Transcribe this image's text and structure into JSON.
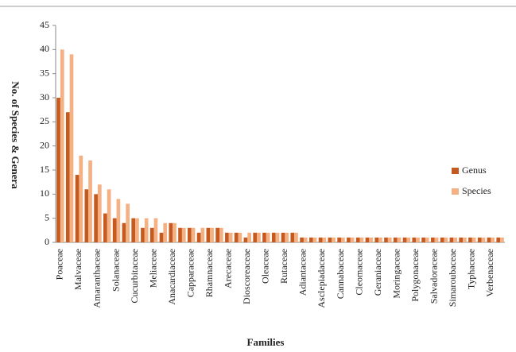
{
  "chart_data": {
    "type": "bar",
    "xlabel": "Families",
    "ylabel": "No. of Species & Genera",
    "categories": [
      "Poaceae",
      null,
      "Malvaceae",
      null,
      "Amaranthaceae",
      null,
      "Solanaceae",
      null,
      "Cucurbitaceae",
      null,
      "Meliaceae",
      null,
      "Anacardiaceae",
      null,
      "Capparaceae",
      null,
      "Rhamnaceae",
      null,
      "Arecaceae",
      null,
      "Dioscoreaceae",
      null,
      "Oleaceae",
      null,
      "Rutaceae",
      null,
      "Adiantaceae",
      null,
      "Asclepiadaceae",
      null,
      "Cannabaceae",
      null,
      "Cleomaceae",
      null,
      "Geraniaceae",
      null,
      "Moringaceae",
      null,
      "Polygonaceae",
      null,
      "Salvadoraceae",
      null,
      "Simaroubaceae",
      null,
      "Typhaceae",
      null,
      "Verbenaceae",
      null
    ],
    "series": [
      {
        "name": "Genus",
        "color": "#c65a1e",
        "values": [
          30,
          27,
          14,
          11,
          10,
          6,
          5,
          4,
          5,
          3,
          3,
          2,
          4,
          3,
          3,
          2,
          3,
          3,
          2,
          2,
          1,
          2,
          2,
          2,
          2,
          2,
          1,
          1,
          1,
          1,
          1,
          1,
          1,
          1,
          1,
          1,
          1,
          1,
          1,
          1,
          1,
          1,
          1,
          1,
          1,
          1,
          1,
          1
        ]
      },
      {
        "name": "Species",
        "color": "#f4b183",
        "values": [
          40,
          39,
          18,
          17,
          12,
          11,
          9,
          8,
          5,
          5,
          5,
          4,
          4,
          3,
          3,
          3,
          3,
          3,
          2,
          2,
          2,
          2,
          2,
          2,
          2,
          2,
          1,
          1,
          1,
          1,
          1,
          1,
          1,
          1,
          1,
          1,
          1,
          1,
          1,
          1,
          1,
          1,
          1,
          1,
          1,
          1,
          1,
          1
        ]
      }
    ],
    "ylim": [
      0,
      45
    ],
    "yticks": [
      0,
      5,
      10,
      15,
      20,
      25,
      30,
      35,
      40,
      45
    ],
    "grid": false,
    "legend": "right"
  }
}
